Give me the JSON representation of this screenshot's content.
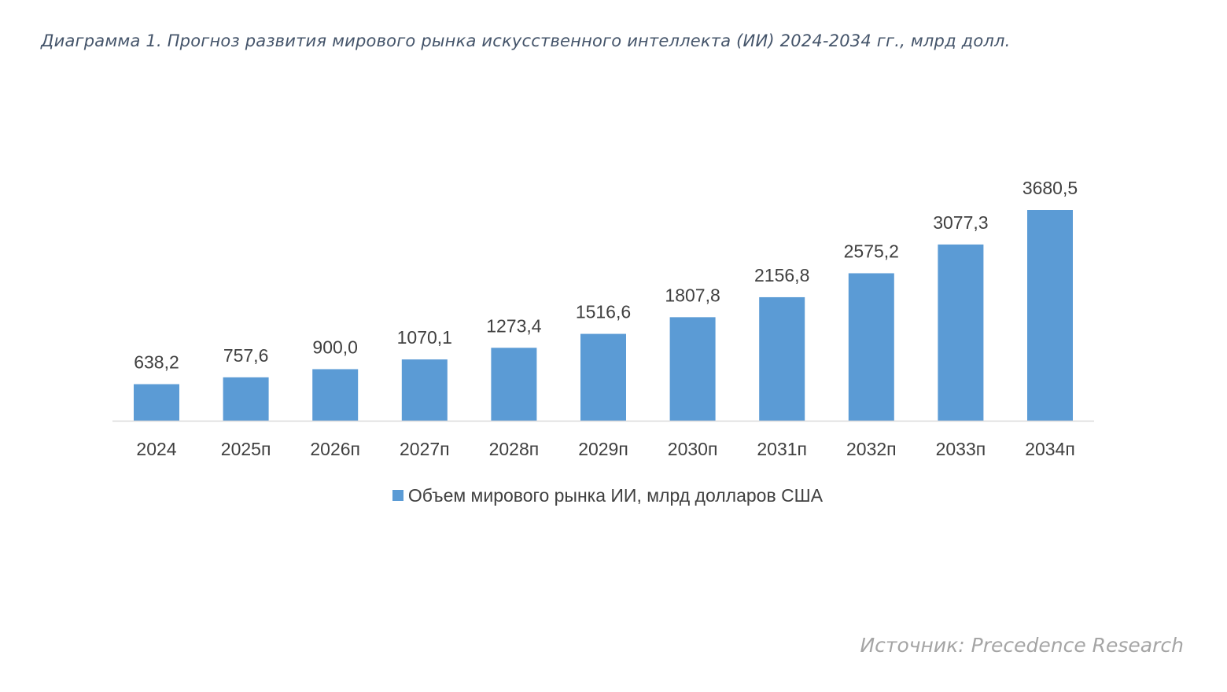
{
  "title": "Диаграмма 1. Прогноз развития мирового рынка искусственного интеллекта (ИИ) 2024-2034 гг., млрд долл.",
  "source": "Источник: Precedence Research",
  "chart_data": {
    "type": "bar",
    "title": "Диаграмма 1. Прогноз развития мирового рынка искусственного интеллекта (ИИ) 2024-2034 гг., млрд долл.",
    "categories": [
      "2024",
      "2025п",
      "2026п",
      "2027п",
      "2028п",
      "2029п",
      "2030п",
      "2031п",
      "2032п",
      "2033п",
      "2034п"
    ],
    "series": [
      {
        "name": "Объем мирового рынка ИИ, млрд долларов США",
        "values": [
          638.2,
          757.6,
          900.0,
          1070.1,
          1273.4,
          1516.6,
          1807.8,
          2156.8,
          2575.2,
          3077.3,
          3680.5
        ],
        "labels": [
          "638,2",
          "757,6",
          "900,0",
          "1070,1",
          "1273,4",
          "1516,6",
          "1807,8",
          "2156,8",
          "2575,2",
          "3077,3",
          "3680,5"
        ],
        "color": "#5b9bd5"
      }
    ],
    "ylim": [
      0,
      3680.5
    ],
    "grid": false,
    "legend": "bottom",
    "xlabel": "",
    "ylabel": ""
  }
}
